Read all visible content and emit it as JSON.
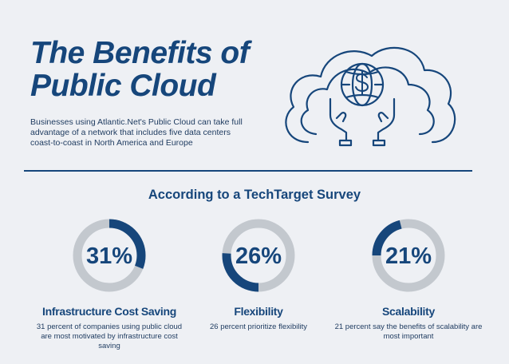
{
  "header": {
    "title_line1": "The Benefits of",
    "title_line2": "Public Cloud",
    "intro": "Businesses using Atlantic.Net's Public Cloud can take full advantage of a network that includes five data centers coast-to-coast in North America and Europe"
  },
  "hero": {
    "icon": "cloud-globe-hands-dollar-icon"
  },
  "survey": {
    "heading": "According to a TechTarget Survey",
    "stats": [
      {
        "percent": 31,
        "label": "31%",
        "title": "Infrastructure Cost Saving",
        "description": "31 percent of companies using public cloud are most motivated by infrastructure cost saving"
      },
      {
        "percent": 26,
        "label": "26%",
        "title": "Flexibility",
        "description": "26 percent prioritize flexibility"
      },
      {
        "percent": 21,
        "label": "21%",
        "title": "Scalability",
        "description": "21 percent say the benefits of scalability are most important"
      }
    ]
  },
  "colors": {
    "navy": "#16467b",
    "ring_track": "#c3c8ce",
    "background": "#eef0f4"
  }
}
